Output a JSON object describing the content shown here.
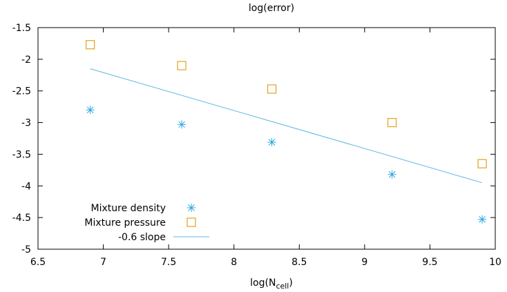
{
  "chart_data": {
    "type": "scatter",
    "title": "log(error)",
    "xlabel": {
      "base": "log(N",
      "sub": "cell",
      "suffix": ")"
    },
    "ylabel": "",
    "xlim": [
      6.5,
      10
    ],
    "ylim": [
      -5,
      -1.5
    ],
    "xticks": [
      6.5,
      7,
      7.5,
      8,
      8.5,
      9,
      9.5,
      10
    ],
    "yticks": [
      -5,
      -4.5,
      -4,
      -3.5,
      -3,
      -2.5,
      -2,
      -1.5
    ],
    "xtick_labels": [
      "6.5",
      "7",
      "7.5",
      "8",
      "8.5",
      "9",
      "9.5",
      "10"
    ],
    "ytick_labels": [
      "-5",
      "-4.5",
      "-4",
      "-3.5",
      "-3",
      "-2.5",
      "-2",
      "-1.5"
    ],
    "grid": false,
    "legend_position": "bottom-left",
    "series": [
      {
        "name": "Mixture density",
        "kind": "scatter",
        "marker": "asterisk",
        "color": "#2ba7e0",
        "x": [
          6.9,
          7.6,
          8.29,
          9.21,
          9.9
        ],
        "y": [
          -2.8,
          -3.03,
          -3.31,
          -3.82,
          -4.53
        ]
      },
      {
        "name": "Mixture pressure",
        "kind": "scatter",
        "marker": "square",
        "color": "#e0a21c",
        "x": [
          6.9,
          7.6,
          8.29,
          9.21,
          9.9
        ],
        "y": [
          -1.77,
          -2.1,
          -2.47,
          -3.0,
          -3.65
        ]
      },
      {
        "name": "-0.6 slope",
        "kind": "line",
        "color": "#5bb8e0",
        "x": [
          6.9,
          9.9
        ],
        "y": [
          -2.15,
          -3.95
        ]
      }
    ]
  }
}
